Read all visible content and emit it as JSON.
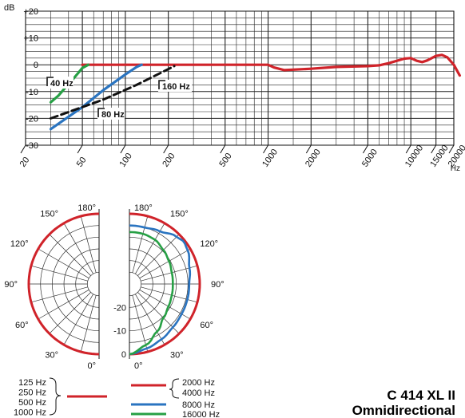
{
  "model": {
    "name": "C 414 XL II",
    "pattern": "Omnidirectional"
  },
  "colors": {
    "red": "#d0232a",
    "green": "#27a045",
    "blue": "#2a74c0",
    "black": "#111111"
  },
  "chart_data": [
    {
      "type": "line",
      "xlabel": "Hz",
      "ylabel": "dB",
      "x_scale": "log",
      "xlim": [
        20,
        20000
      ],
      "ylim": [
        -30,
        20
      ],
      "x_ticks": [
        "20",
        "50",
        "100",
        "200",
        "500",
        "1000",
        "2000",
        "5000",
        "10000",
        "15000",
        "20000"
      ],
      "x_tick_values": [
        20,
        50,
        100,
        200,
        500,
        1000,
        2000,
        5000,
        10000,
        15000,
        20000
      ],
      "y_ticks": [
        "+20",
        "+10",
        "0",
        "-10",
        "-20",
        "-30"
      ],
      "y_tick_values": [
        20,
        10,
        0,
        -10,
        -20,
        -30
      ],
      "grid": true,
      "series": [
        {
          "color": "red",
          "dash": false,
          "points": [
            [
              50,
              0
            ],
            [
              100,
              0
            ],
            [
              1000,
              0
            ],
            [
              1100,
              -1
            ],
            [
              1300,
              -2
            ],
            [
              2000,
              -1.5
            ],
            [
              3000,
              -0.8
            ],
            [
              5000,
              -0.5
            ],
            [
              6000,
              -0.2
            ],
            [
              7000,
              0.6
            ],
            [
              9000,
              2.3
            ],
            [
              10000,
              2.5
            ],
            [
              11000,
              1.5
            ],
            [
              12000,
              1
            ],
            [
              13000,
              1.6
            ],
            [
              15000,
              3.3
            ],
            [
              16500,
              3.7
            ],
            [
              18000,
              2.8
            ],
            [
              20000,
              0
            ],
            [
              22000,
              -4
            ]
          ]
        },
        {
          "color": "green",
          "dash": false,
          "points": [
            [
              30,
              -14
            ],
            [
              34,
              -11.5
            ],
            [
              38,
              -8.5
            ],
            [
              42,
              -6
            ],
            [
              46,
              -3.5
            ],
            [
              50,
              -1.2
            ],
            [
              55,
              0
            ]
          ]
        },
        {
          "color": "blue",
          "dash": false,
          "points": [
            [
              30,
              -24
            ],
            [
              50,
              -15.8
            ],
            [
              70,
              -9.5
            ],
            [
              100,
              -3.6
            ],
            [
              120,
              -0.8
            ],
            [
              130,
              0
            ]
          ]
        },
        {
          "color": "black",
          "dash": true,
          "points": [
            [
              30,
              -20
            ],
            [
              70,
              -13
            ],
            [
              120,
              -7.5
            ],
            [
              220,
              -0.5
            ]
          ]
        }
      ],
      "annotations": [
        {
          "text": "40 Hz",
          "x": 40,
          "y": -6
        },
        {
          "text": "80 Hz",
          "x": 80,
          "y": -17
        },
        {
          "text": "160 Hz",
          "x": 160,
          "y": -6
        }
      ]
    },
    {
      "type": "polar",
      "angle_labels": [
        "180°",
        "150°",
        "120°",
        "90°",
        "60°",
        "30°",
        "0°"
      ],
      "angle_values": [
        180,
        150,
        120,
        90,
        60,
        30,
        0
      ],
      "radial_labels": [
        "-20",
        "-10",
        "0"
      ],
      "radial_values": [
        -20,
        -10,
        0
      ],
      "left_half": {
        "series": [
          {
            "color": "red",
            "level_db": [
              [
                0,
                0
              ],
              [
                30,
                0
              ],
              [
                60,
                0
              ],
              [
                90,
                0
              ],
              [
                120,
                0
              ],
              [
                150,
                0
              ],
              [
                180,
                0
              ]
            ]
          }
        ]
      },
      "right_half": {
        "series": [
          {
            "color": "red",
            "level_db": [
              [
                0,
                0
              ],
              [
                30,
                0
              ],
              [
                60,
                0
              ],
              [
                90,
                0
              ],
              [
                120,
                0
              ],
              [
                150,
                0
              ],
              [
                180,
                0
              ]
            ]
          },
          {
            "color": "blue",
            "level_db": [
              [
                0,
                0
              ],
              [
                15,
                -1.5
              ],
              [
                30,
                -2.7
              ],
              [
                45,
                -3.8
              ],
              [
                60,
                -4.3
              ],
              [
                75,
                -4.4
              ],
              [
                90,
                -4.5
              ],
              [
                105,
                -3.5
              ],
              [
                120,
                -1.3
              ],
              [
                128,
                -0.6
              ],
              [
                135,
                -1.5
              ],
              [
                150,
                -4
              ],
              [
                165,
                -5
              ],
              [
                180,
                -5
              ]
            ]
          },
          {
            "color": "green",
            "level_db": [
              [
                0,
                0
              ],
              [
                15,
                -3
              ],
              [
                30,
                -6.5
              ],
              [
                45,
                -9.5
              ],
              [
                60,
                -10.8
              ],
              [
                75,
                -11.3
              ],
              [
                90,
                -11.5
              ],
              [
                105,
                -11.3
              ],
              [
                120,
                -10.5
              ],
              [
                135,
                -9.5
              ],
              [
                150,
                -8.2
              ],
              [
                165,
                -7.8
              ],
              [
                180,
                -7.8
              ]
            ]
          }
        ]
      }
    }
  ],
  "legend": {
    "left_group": [
      "125 Hz",
      "250 Hz",
      "500 Hz",
      "1000 Hz"
    ],
    "left_color": "red",
    "right_group_braced": [
      "2000 Hz",
      "4000 Hz"
    ],
    "right_group_color": "red",
    "right_items": [
      {
        "label": "8000 Hz",
        "color": "blue"
      },
      {
        "label": "16000 Hz",
        "color": "green"
      }
    ]
  }
}
